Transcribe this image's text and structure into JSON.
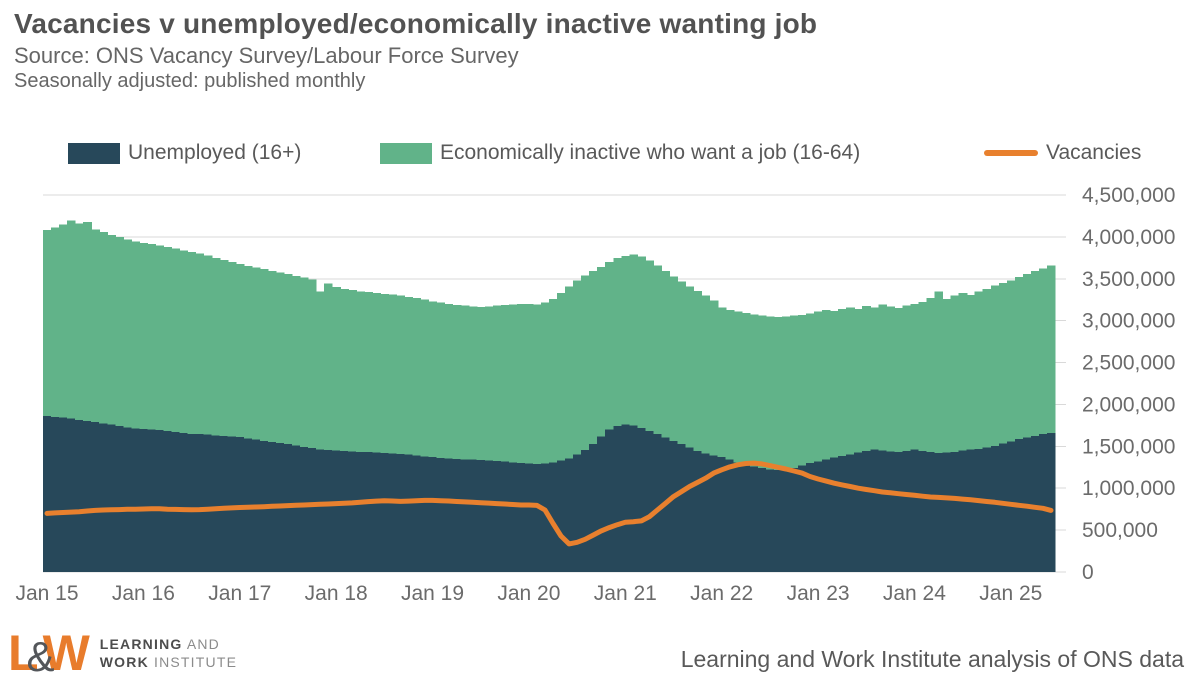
{
  "header": {
    "title": "Vacancies v unemployed/economically inactive wanting job",
    "source": "Source: ONS Vacancy Survey/Labour Force Survey",
    "note": "Seasonally adjusted: published monthly"
  },
  "legend": {
    "items": [
      {
        "label": "Unemployed (16+)",
        "color": "#27485a"
      },
      {
        "label": "Economically inactive who want a job (16-64)",
        "color": "#61b389"
      },
      {
        "label": "Vacancies",
        "color": "#e8802e"
      }
    ]
  },
  "chart_data": {
    "type": "bar",
    "stacked": true,
    "line_overlay": "Vacancies",
    "title": "Vacancies v unemployed/economically inactive wanting job",
    "x_unit": "month",
    "x_start": "2015-01",
    "x_end": "2025-06",
    "x_tick_labels": [
      "Jan 15",
      "Jan 16",
      "Jan 17",
      "Jan 18",
      "Jan 19",
      "Jan 20",
      "Jan 21",
      "Jan 22",
      "Jan 23",
      "Jan 24",
      "Jan 25"
    ],
    "x_tick_month_indices": [
      0,
      12,
      24,
      36,
      48,
      60,
      72,
      84,
      96,
      108,
      120
    ],
    "ylim": [
      0,
      4500000
    ],
    "y_tick_step": 500000,
    "y_tick_labels": [
      "0",
      "500,000",
      "1,000,000",
      "1,500,000",
      "2,000,000",
      "2,500,000",
      "3,000,000",
      "3,500,000",
      "4,000,000",
      "4,500,000"
    ],
    "y_axis_side": "right",
    "grid": "horizontal",
    "legend_position": "top",
    "values_unit": "thousands of people",
    "series": [
      {
        "name": "Unemployed (16+)",
        "type": "bar",
        "color": "#27485a",
        "values": [
          1860,
          1850,
          1845,
          1830,
          1815,
          1800,
          1790,
          1775,
          1760,
          1745,
          1725,
          1710,
          1705,
          1700,
          1695,
          1685,
          1670,
          1660,
          1650,
          1645,
          1640,
          1630,
          1625,
          1620,
          1610,
          1595,
          1580,
          1565,
          1550,
          1540,
          1525,
          1510,
          1495,
          1480,
          1465,
          1455,
          1450,
          1445,
          1440,
          1435,
          1430,
          1425,
          1420,
          1415,
          1410,
          1400,
          1390,
          1380,
          1370,
          1360,
          1355,
          1350,
          1345,
          1340,
          1335,
          1330,
          1325,
          1320,
          1310,
          1300,
          1295,
          1290,
          1295,
          1310,
          1330,
          1355,
          1400,
          1455,
          1525,
          1620,
          1700,
          1745,
          1760,
          1750,
          1720,
          1685,
          1645,
          1605,
          1565,
          1525,
          1485,
          1445,
          1415,
          1390,
          1370,
          1340,
          1310,
          1285,
          1260,
          1240,
          1225,
          1215,
          1220,
          1240,
          1270,
          1300,
          1320,
          1340,
          1365,
          1385,
          1405,
          1425,
          1445,
          1460,
          1450,
          1440,
          1435,
          1445,
          1460,
          1445,
          1430,
          1420,
          1425,
          1435,
          1450,
          1460,
          1470,
          1485,
          1505,
          1535,
          1560,
          1585,
          1605,
          1625,
          1645,
          1660
        ]
      },
      {
        "name": "Economically inactive who want a job (16-64)",
        "type": "bar",
        "color": "#61b389",
        "values": [
          2220,
          2260,
          2305,
          2365,
          2345,
          2375,
          2300,
          2285,
          2265,
          2255,
          2245,
          2235,
          2225,
          2215,
          2205,
          2195,
          2190,
          2180,
          2170,
          2155,
          2135,
          2120,
          2100,
          2080,
          2065,
          2060,
          2055,
          2050,
          2045,
          2035,
          2030,
          2025,
          2020,
          2010,
          1885,
          1990,
          1950,
          1935,
          1925,
          1915,
          1910,
          1905,
          1900,
          1895,
          1890,
          1885,
          1880,
          1870,
          1860,
          1855,
          1845,
          1840,
          1835,
          1830,
          1830,
          1840,
          1855,
          1870,
          1885,
          1900,
          1905,
          1905,
          1920,
          1950,
          2000,
          2055,
          2080,
          2085,
          2065,
          2020,
          2000,
          2005,
          2010,
          2040,
          2045,
          2035,
          2015,
          1985,
          1965,
          1940,
          1925,
          1910,
          1885,
          1850,
          1790,
          1790,
          1800,
          1805,
          1815,
          1820,
          1825,
          1830,
          1830,
          1820,
          1800,
          1785,
          1790,
          1790,
          1750,
          1755,
          1755,
          1715,
          1730,
          1695,
          1745,
          1730,
          1715,
          1735,
          1740,
          1775,
          1840,
          1930,
          1835,
          1865,
          1880,
          1845,
          1880,
          1895,
          1915,
          1915,
          1920,
          1935,
          1950,
          1965,
          1980,
          2000
        ]
      },
      {
        "name": "Vacancies",
        "type": "line",
        "color": "#e8802e",
        "values": [
          700,
          705,
          710,
          715,
          720,
          728,
          735,
          740,
          742,
          745,
          748,
          750,
          752,
          755,
          754,
          750,
          747,
          745,
          742,
          745,
          750,
          755,
          760,
          765,
          770,
          773,
          776,
          780,
          784,
          788,
          792,
          796,
          800,
          804,
          808,
          812,
          816,
          820,
          825,
          832,
          840,
          846,
          850,
          847,
          843,
          846,
          851,
          855,
          855,
          851,
          847,
          842,
          837,
          832,
          827,
          822,
          817,
          812,
          806,
          800,
          800,
          795,
          740,
          580,
          430,
          335,
          355,
          390,
          440,
          490,
          530,
          565,
          595,
          600,
          610,
          660,
          740,
          820,
          900,
          960,
          1020,
          1070,
          1120,
          1180,
          1220,
          1255,
          1280,
          1295,
          1300,
          1290,
          1270,
          1250,
          1230,
          1205,
          1180,
          1140,
          1110,
          1085,
          1060,
          1040,
          1020,
          1000,
          985,
          970,
          955,
          945,
          935,
          925,
          915,
          905,
          895,
          890,
          885,
          878,
          870,
          862,
          852,
          842,
          832,
          820,
          808,
          796,
          785,
          772,
          760,
          735
        ]
      }
    ]
  },
  "footer": {
    "credit": "Learning and Work Institute analysis of ONS data",
    "logo": {
      "l": "L",
      "amp": "&",
      "w": "W",
      "line1_bold": "LEARNING",
      "line1_light": "AND",
      "line2_bold": "WORK",
      "line2_light": "INSTITUTE"
    }
  }
}
